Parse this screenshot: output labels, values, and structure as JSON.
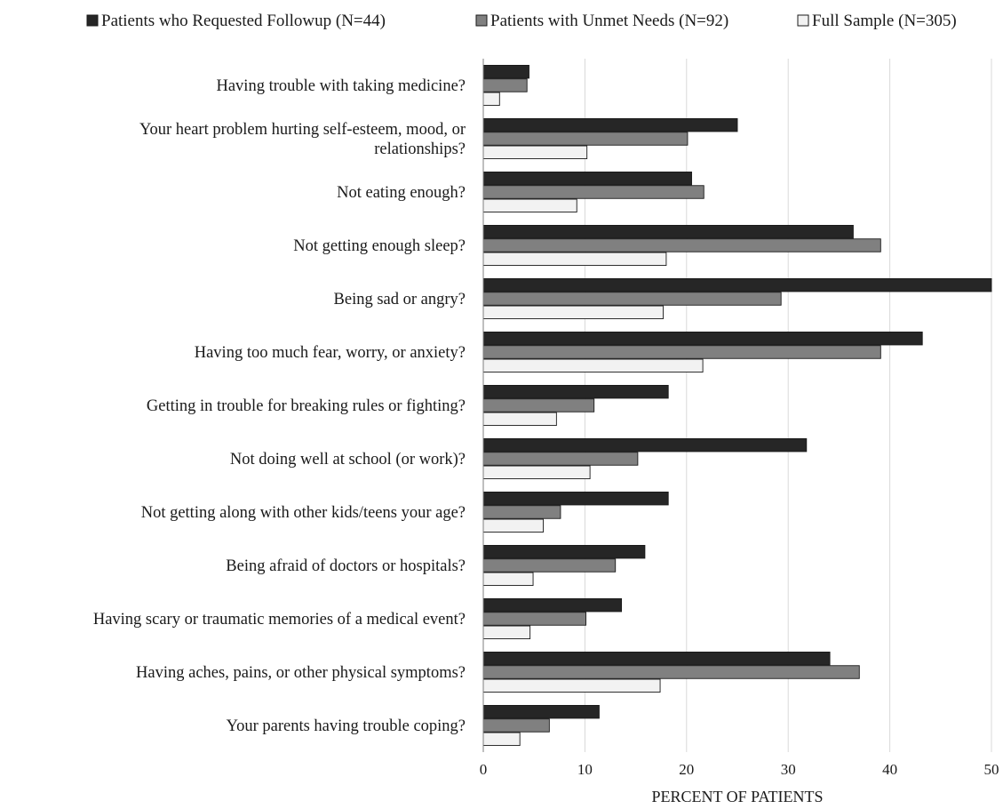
{
  "chart_data": {
    "type": "bar",
    "orientation": "horizontal",
    "title": "",
    "xlabel": "PERCENT OF PATIENTS",
    "ylabel": "",
    "xlim": [
      0,
      50
    ],
    "xticks": [
      0,
      10,
      20,
      30,
      40,
      50
    ],
    "grid": "vertical",
    "legend_position": "top",
    "categories": [
      "Having trouble with taking medicine?",
      "Your heart problem hurting self-esteem, mood, or relationships?",
      "Not eating enough?",
      "Not getting enough sleep?",
      "Being sad or angry?",
      "Having too much fear, worry, or anxiety?",
      "Getting in trouble for breaking rules or fighting?",
      "Not doing well at school (or work)?",
      "Not getting along with other kids/teens your age?",
      "Being afraid of doctors or hospitals?",
      "Having scary or traumatic memories of a medical event?",
      "Having aches, pains, or other physical symptoms?",
      "Your parents having trouble coping?"
    ],
    "category_lines": [
      [
        "Having trouble with taking medicine?"
      ],
      [
        "Your heart problem hurting self-esteem, mood, or",
        "relationships?"
      ],
      [
        "Not eating enough?"
      ],
      [
        "Not getting enough sleep?"
      ],
      [
        "Being sad or angry?"
      ],
      [
        "Having too much fear, worry, or anxiety?"
      ],
      [
        "Getting in trouble for breaking rules or fighting?"
      ],
      [
        "Not doing well at school (or work)?"
      ],
      [
        "Not getting along with other kids/teens your age?"
      ],
      [
        "Being afraid of doctors or hospitals?"
      ],
      [
        "Having scary or traumatic memories of a medical event?"
      ],
      [
        "Having aches, pains, or other physical symptoms?"
      ],
      [
        "Your parents having trouble coping?"
      ]
    ],
    "series": [
      {
        "name": "Patients who Requested Followup (N=44)",
        "color": "#262626",
        "values": [
          4.5,
          25.0,
          20.5,
          36.4,
          50.0,
          43.2,
          18.2,
          31.8,
          18.2,
          15.9,
          13.6,
          34.1,
          11.4
        ]
      },
      {
        "name": "Patients with Unmet Needs (N=92)",
        "color": "#808080",
        "values": [
          4.3,
          20.1,
          21.7,
          39.1,
          29.3,
          39.1,
          10.9,
          15.2,
          7.6,
          13.0,
          10.1,
          37.0,
          6.5
        ]
      },
      {
        "name": "Full Sample (N=305)",
        "color": "#f2f2f2",
        "values": [
          1.6,
          10.2,
          9.2,
          18.0,
          17.7,
          21.6,
          7.2,
          10.5,
          5.9,
          4.9,
          4.6,
          17.4,
          3.6
        ]
      }
    ]
  }
}
